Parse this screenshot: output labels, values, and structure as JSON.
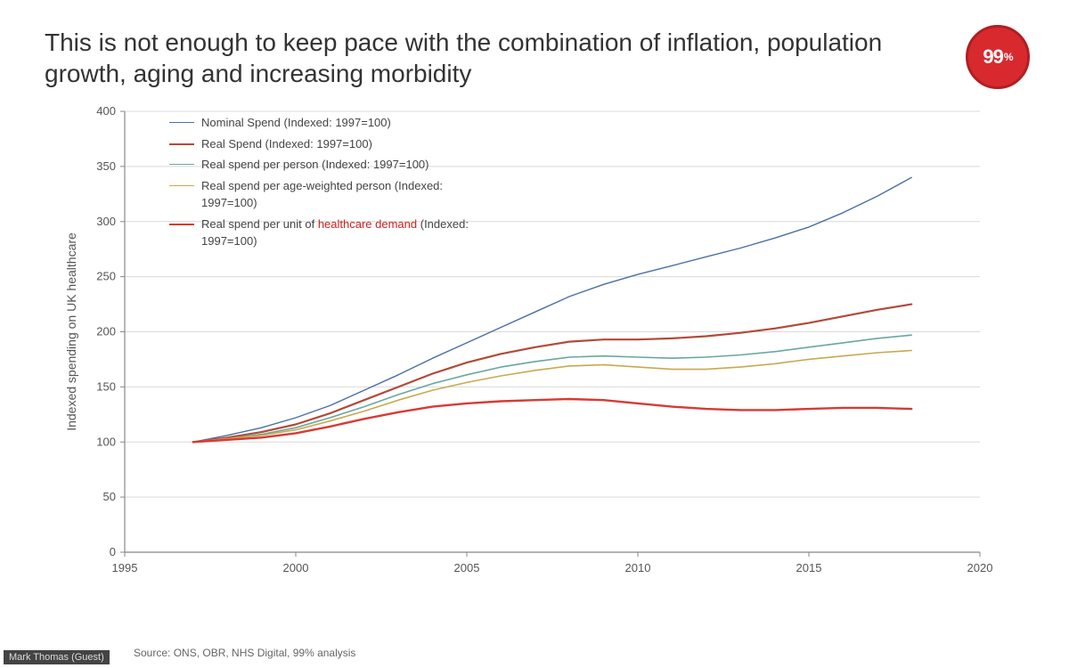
{
  "title": "This is not enough to keep pace with the combination of inflation, population growth, aging and increasing morbidity",
  "badge": {
    "value": "99",
    "pct": "%",
    "bg": "#d82a2e",
    "border": "#b01f22",
    "text_color": "#ffffff"
  },
  "source": "Source: ONS, OBR, NHS Digital, 99% analysis",
  "presenter": "Mark Thomas (Guest)",
  "chart": {
    "type": "line",
    "background_color": "#ffffff",
    "grid_color": "#d9d9d9",
    "axis_color": "#888888",
    "tick_color": "#555555",
    "title_fontsize": 14,
    "label_fontsize": 13,
    "y_axis_label": "Indexed spending on UK healthcare",
    "xlim": [
      1995,
      2020
    ],
    "xtick_step": 5,
    "xticks": [
      1995,
      2000,
      2005,
      2010,
      2015,
      2020
    ],
    "ylim": [
      0,
      400
    ],
    "ytick_step": 50,
    "yticks": [
      0,
      50,
      100,
      150,
      200,
      250,
      300,
      350,
      400
    ],
    "legend_position": "upper-left-inside",
    "series": [
      {
        "name": "Nominal Spend (Indexed: 1997=100)",
        "color": "#4a6fa5",
        "line_width": 1.4,
        "dash": "none",
        "x": [
          1997,
          1998,
          1999,
          2000,
          2001,
          2002,
          2003,
          2004,
          2005,
          2006,
          2007,
          2008,
          2009,
          2010,
          2011,
          2012,
          2013,
          2014,
          2015,
          2016,
          2017,
          2018
        ],
        "y": [
          100,
          106,
          113,
          122,
          133,
          147,
          161,
          176,
          190,
          204,
          218,
          232,
          243,
          252,
          260,
          268,
          276,
          285,
          295,
          308,
          323,
          340
        ]
      },
      {
        "name": "Real Spend (Indexed: 1997=100)",
        "color": "#b24a38",
        "line_width": 2.2,
        "dash": "none",
        "x": [
          1997,
          1998,
          1999,
          2000,
          2001,
          2002,
          2003,
          2004,
          2005,
          2006,
          2007,
          2008,
          2009,
          2010,
          2011,
          2012,
          2013,
          2014,
          2015,
          2016,
          2017,
          2018
        ],
        "y": [
          100,
          104,
          109,
          116,
          126,
          138,
          150,
          162,
          172,
          180,
          186,
          191,
          193,
          193,
          194,
          196,
          199,
          203,
          208,
          214,
          220,
          225
        ]
      },
      {
        "name": "Real spend per person (Indexed: 1997=100)",
        "color": "#6aa6a0",
        "line_width": 1.6,
        "dash": "none",
        "x": [
          1997,
          1998,
          1999,
          2000,
          2001,
          2002,
          2003,
          2004,
          2005,
          2006,
          2007,
          2008,
          2009,
          2010,
          2011,
          2012,
          2013,
          2014,
          2015,
          2016,
          2017,
          2018
        ],
        "y": [
          100,
          103,
          107,
          113,
          122,
          132,
          143,
          153,
          161,
          168,
          173,
          177,
          178,
          177,
          176,
          177,
          179,
          182,
          186,
          190,
          194,
          197
        ]
      },
      {
        "name": "Real spend per age-weighted person (Indexed: 1997=100)",
        "color": "#c9a94e",
        "line_width": 1.6,
        "dash": "none",
        "x": [
          1997,
          1998,
          1999,
          2000,
          2001,
          2002,
          2003,
          2004,
          2005,
          2006,
          2007,
          2008,
          2009,
          2010,
          2011,
          2012,
          2013,
          2014,
          2015,
          2016,
          2017,
          2018
        ],
        "y": [
          100,
          103,
          106,
          111,
          119,
          128,
          138,
          147,
          154,
          160,
          165,
          169,
          170,
          168,
          166,
          166,
          168,
          171,
          175,
          178,
          181,
          183
        ]
      },
      {
        "name_prefix": "Real spend per unit of ",
        "name_highlight": "healthcare demand",
        "name_suffix": " (Indexed: 1997=100)",
        "name": "Real spend per unit of healthcare demand (Indexed: 1997=100)",
        "color": "#d83a34",
        "line_width": 2.4,
        "dash": "none",
        "x": [
          1997,
          1998,
          1999,
          2000,
          2001,
          2002,
          2003,
          2004,
          2005,
          2006,
          2007,
          2008,
          2009,
          2010,
          2011,
          2012,
          2013,
          2014,
          2015,
          2016,
          2017,
          2018
        ],
        "y": [
          100,
          102,
          104,
          108,
          114,
          121,
          127,
          132,
          135,
          137,
          138,
          139,
          138,
          135,
          132,
          130,
          129,
          129,
          130,
          131,
          131,
          130
        ]
      }
    ]
  }
}
